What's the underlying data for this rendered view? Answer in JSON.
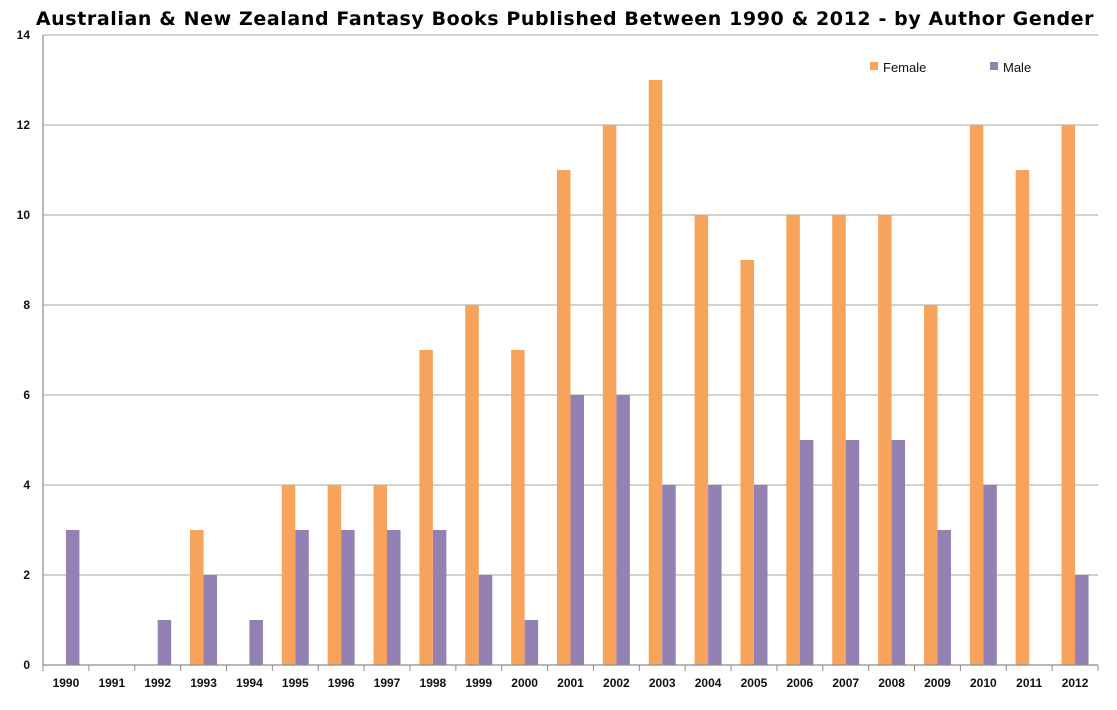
{
  "chart_data": {
    "type": "bar",
    "title": "Australian & New Zealand Fantasy Books Published Between 1990 & 2012 - by Author Gender",
    "xlabel": "",
    "ylabel": "",
    "ylim": [
      0,
      14
    ],
    "yticks": [
      0,
      2,
      4,
      6,
      8,
      10,
      12,
      14
    ],
    "grid": true,
    "legend_position": "top-right",
    "categories": [
      "1990",
      "1991",
      "1992",
      "1993",
      "1994",
      "1995",
      "1996",
      "1997",
      "1998",
      "1999",
      "2000",
      "2001",
      "2002",
      "2003",
      "2004",
      "2005",
      "2006",
      "2007",
      "2008",
      "2009",
      "2010",
      "2011",
      "2012"
    ],
    "series": [
      {
        "name": "Female",
        "color": "#F7A35C",
        "values": [
          0,
          0,
          0,
          3,
          0,
          4,
          4,
          4,
          7,
          8,
          7,
          11,
          12,
          13,
          10,
          9,
          10,
          10,
          10,
          8,
          12,
          11,
          12
        ]
      },
      {
        "name": "Male",
        "color": "#9481B4",
        "values": [
          3,
          0,
          1,
          2,
          1,
          3,
          3,
          3,
          3,
          2,
          1,
          6,
          6,
          4,
          4,
          4,
          5,
          5,
          5,
          3,
          4,
          0,
          2
        ]
      }
    ]
  }
}
